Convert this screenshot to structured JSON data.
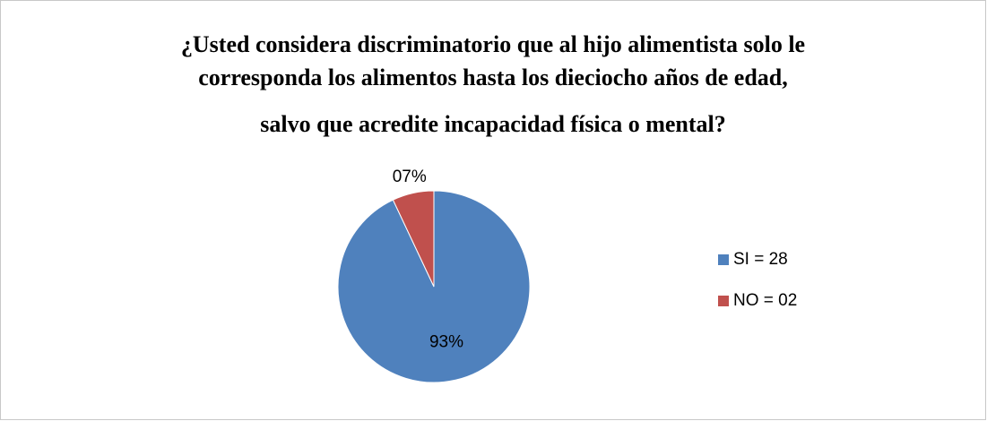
{
  "chart_data": {
    "type": "pie",
    "title": [
      "¿Usted considera discriminatorio que al hijo alimentista solo le",
      "corresponda los alimentos hasta los dieciocho años de edad,",
      "salvo que acredite incapacidad física o mental?"
    ],
    "series": [
      {
        "name": "SI = 28",
        "color": "#4f81bd"
      },
      {
        "name": "NO = 02",
        "color": "#c0504d"
      }
    ],
    "values": [
      93,
      7
    ],
    "value_labels": [
      "93%",
      "07%"
    ],
    "legend": "right"
  }
}
